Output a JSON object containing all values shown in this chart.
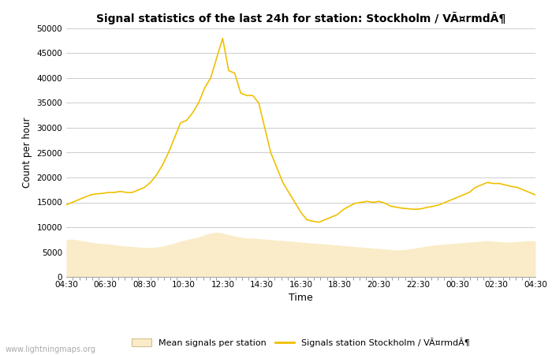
{
  "title": "Signal statistics of the last 24h for station: Stockholm / VÃ¤rmdÃ¶",
  "xlabel": "Time",
  "ylabel": "Count per hour",
  "xlim_labels": [
    "04:30",
    "06:30",
    "08:30",
    "10:30",
    "12:30",
    "14:30",
    "16:30",
    "18:30",
    "20:30",
    "22:30",
    "00:30",
    "02:30",
    "04:30"
  ],
  "ylim": [
    0,
    50000
  ],
  "yticks": [
    0,
    5000,
    10000,
    15000,
    20000,
    25000,
    30000,
    35000,
    40000,
    45000,
    50000
  ],
  "watermark": "www.lightningmaps.org",
  "legend_mean_label": "Mean signals per station",
  "legend_station_label": "Signals station Stockholm / VÃ¤rmdÃ¶",
  "mean_color": "#faecc8",
  "mean_edge_color": "#e8d8a0",
  "station_color": "#f0c000",
  "background_color": "#ffffff",
  "grid_color": "#cccccc",
  "station_y": [
    14500,
    15000,
    15500,
    16000,
    16500,
    16700,
    16800,
    17000,
    17000,
    17200,
    17000,
    17000,
    17500,
    18000,
    19000,
    20500,
    22500,
    25000,
    28000,
    31000,
    31500,
    33000,
    35000,
    38000,
    40000,
    44000,
    48000,
    41500,
    41000,
    37000,
    36500,
    36500,
    35000,
    30000,
    25000,
    22000,
    19000,
    17000,
    15000,
    13000,
    11500,
    11200,
    11000,
    11500,
    12000,
    12500,
    13500,
    14200,
    14800,
    15000,
    15200,
    15000,
    15200,
    14800,
    14200,
    14000,
    13800,
    13700,
    13600,
    13700,
    14000,
    14200,
    14500,
    15000,
    15500,
    16000,
    16500,
    17000,
    18000,
    18500,
    19000,
    18800,
    18800,
    18500,
    18200,
    18000,
    17500,
    17000,
    16500
  ],
  "mean_y": [
    7500,
    7600,
    7400,
    7200,
    7000,
    6800,
    6700,
    6600,
    6500,
    6300,
    6200,
    6100,
    6000,
    5900,
    5900,
    6000,
    6200,
    6500,
    6800,
    7200,
    7500,
    7800,
    8000,
    8500,
    8800,
    9000,
    8800,
    8500,
    8200,
    8000,
    7800,
    7800,
    7700,
    7600,
    7500,
    7400,
    7300,
    7200,
    7100,
    7000,
    6900,
    6800,
    6700,
    6600,
    6500,
    6400,
    6300,
    6200,
    6100,
    6000,
    5900,
    5800,
    5700,
    5600,
    5500,
    5400,
    5500,
    5600,
    5800,
    6000,
    6200,
    6400,
    6500,
    6600,
    6700,
    6800,
    6900,
    7000,
    7100,
    7200,
    7300,
    7200,
    7100,
    7000,
    7000,
    7100,
    7200,
    7300,
    7200
  ]
}
